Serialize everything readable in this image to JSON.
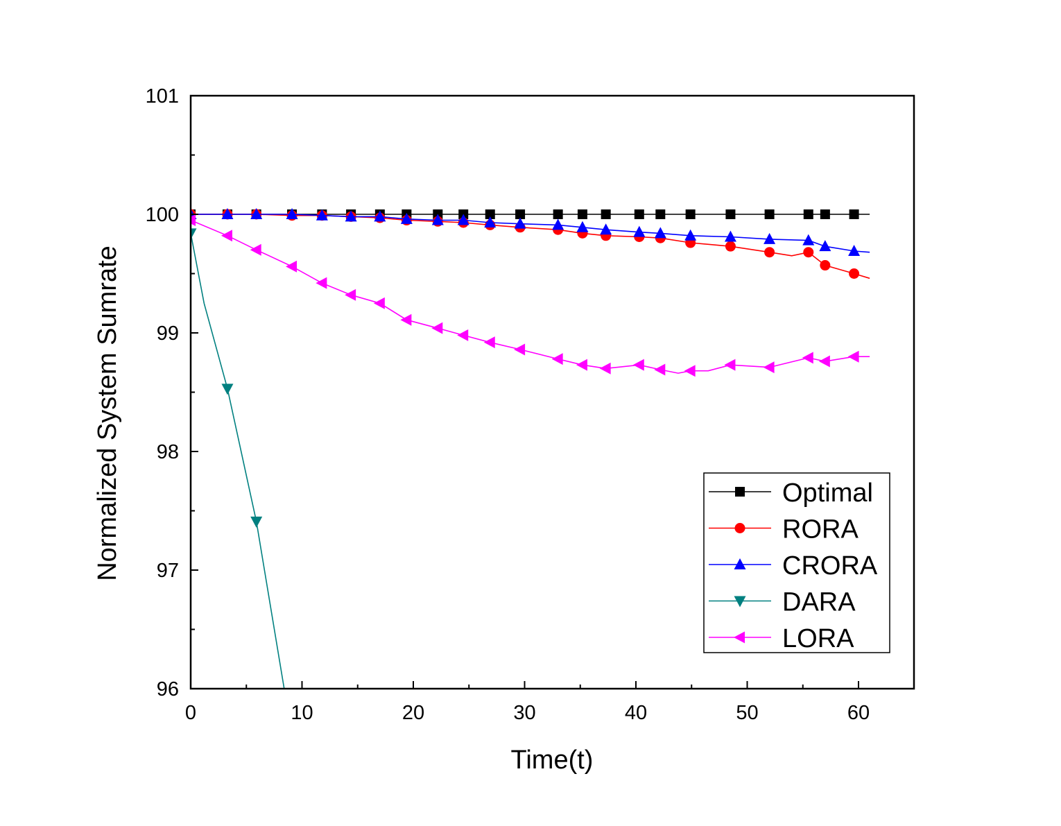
{
  "chart_data": {
    "type": "line",
    "title": "",
    "xlabel": "Time(t)",
    "ylabel": "Normalized System Sumrate",
    "xlim": [
      0,
      65
    ],
    "ylim": [
      96,
      101
    ],
    "xticks": [
      "0",
      "10",
      "20",
      "30",
      "40",
      "50",
      "60"
    ],
    "yticks": [
      "96",
      "97",
      "98",
      "99",
      "100",
      "101"
    ],
    "grid": false,
    "legend_position": "lower-right",
    "series": [
      {
        "name": "Optimal",
        "color": "#000000",
        "marker": "square",
        "x": [
          0,
          3.3,
          5.9,
          9.1,
          11.8,
          14.4,
          17.0,
          19.4,
          22.2,
          24.5,
          26.9,
          29.6,
          33.0,
          35.2,
          37.3,
          40.3,
          42.2,
          44.9,
          48.5,
          52.0,
          55.5,
          57.0,
          59.6
        ],
        "y": [
          100,
          100,
          100,
          100,
          100,
          100,
          100,
          100,
          100,
          100,
          100,
          100,
          100,
          100,
          100,
          100,
          100,
          100,
          100,
          100,
          100,
          100,
          100
        ],
        "line_x": [
          0,
          61
        ],
        "line_y": [
          100,
          100
        ]
      },
      {
        "name": "RORA",
        "color": "#ff0000",
        "marker": "circle",
        "x": [
          0,
          3.3,
          5.9,
          9.1,
          11.8,
          14.4,
          17.0,
          19.4,
          22.2,
          24.5,
          26.9,
          29.6,
          33.0,
          35.2,
          37.3,
          40.3,
          42.2,
          44.9,
          48.5,
          52.0,
          55.5,
          57.0,
          59.6
        ],
        "y": [
          100.0,
          100.0,
          100.0,
          99.99,
          99.99,
          99.98,
          99.97,
          99.95,
          99.94,
          99.93,
          99.91,
          99.89,
          99.87,
          99.84,
          99.82,
          99.81,
          99.8,
          99.76,
          99.73,
          99.68,
          99.68,
          99.57,
          99.5
        ],
        "line_x": [
          0,
          3.3,
          5.9,
          9.1,
          11.8,
          14.4,
          17.0,
          19.4,
          22.2,
          24.5,
          26.9,
          29.6,
          33.0,
          35.2,
          37.3,
          40.3,
          42.2,
          44.9,
          48.5,
          52.0,
          54.0,
          55.5,
          57.0,
          59.6,
          61
        ],
        "line_y": [
          100.0,
          100.0,
          100.0,
          99.99,
          99.99,
          99.98,
          99.97,
          99.95,
          99.94,
          99.93,
          99.91,
          99.89,
          99.87,
          99.84,
          99.82,
          99.81,
          99.8,
          99.76,
          99.73,
          99.68,
          99.65,
          99.68,
          99.57,
          99.5,
          99.46
        ]
      },
      {
        "name": "CRORA",
        "color": "#0000ff",
        "marker": "triangle-up",
        "x": [
          0,
          3.3,
          5.9,
          9.1,
          11.8,
          14.4,
          17.0,
          19.4,
          22.2,
          24.5,
          26.9,
          29.6,
          33.0,
          35.2,
          37.3,
          40.3,
          42.2,
          44.9,
          48.5,
          52.0,
          55.5,
          57.0,
          59.6
        ],
        "y": [
          100.0,
          100.0,
          100.0,
          100.0,
          99.99,
          99.98,
          99.98,
          99.96,
          99.95,
          99.95,
          99.93,
          99.92,
          99.91,
          99.89,
          99.87,
          99.85,
          99.84,
          99.82,
          99.81,
          99.79,
          99.78,
          99.73,
          99.69
        ],
        "line_x": [
          0,
          3.3,
          5.9,
          9.1,
          11.8,
          14.4,
          17.0,
          19.4,
          22.2,
          24.5,
          26.9,
          29.6,
          33.0,
          35.2,
          37.3,
          40.3,
          42.2,
          44.9,
          48.5,
          52.0,
          55.5,
          57.0,
          59.6,
          61
        ],
        "line_y": [
          100.0,
          100.0,
          100.0,
          100.0,
          99.99,
          99.98,
          99.98,
          99.96,
          99.95,
          99.95,
          99.93,
          99.92,
          99.91,
          99.89,
          99.87,
          99.85,
          99.84,
          99.82,
          99.81,
          99.79,
          99.78,
          99.73,
          99.69,
          99.68
        ]
      },
      {
        "name": "DARA",
        "color": "#008080",
        "marker": "triangle-down",
        "x": [
          0,
          3.3,
          5.9
        ],
        "y": [
          99.84,
          98.53,
          97.41
        ],
        "line_x": [
          0,
          1.2,
          3.3,
          5.9,
          8.4
        ],
        "line_y": [
          99.84,
          99.25,
          98.53,
          97.41,
          96.0
        ]
      },
      {
        "name": "LORA",
        "color": "#ff00ff",
        "marker": "triangle-left",
        "x": [
          0,
          3.3,
          5.9,
          9.1,
          11.8,
          14.4,
          17.0,
          19.4,
          22.2,
          24.5,
          26.9,
          29.6,
          33.0,
          35.2,
          37.3,
          40.3,
          42.2,
          44.9,
          48.5,
          52.0,
          55.5,
          57.0,
          59.6
        ],
        "y": [
          99.95,
          99.82,
          99.7,
          99.56,
          99.42,
          99.32,
          99.25,
          99.11,
          99.04,
          98.98,
          98.92,
          98.86,
          98.78,
          98.73,
          98.7,
          98.73,
          98.69,
          98.68,
          98.73,
          98.71,
          98.79,
          98.76,
          98.8
        ],
        "line_x": [
          0,
          3.3,
          5.9,
          9.1,
          11.8,
          14.4,
          17.0,
          19.4,
          22.2,
          24.5,
          26.9,
          29.6,
          33.0,
          35.2,
          37.3,
          40.3,
          42.2,
          43.8,
          44.9,
          46.5,
          48.5,
          52.0,
          55.5,
          57.0,
          59.6,
          61
        ],
        "line_y": [
          99.95,
          99.82,
          99.7,
          99.56,
          99.42,
          99.32,
          99.25,
          99.11,
          99.04,
          98.98,
          98.92,
          98.86,
          98.78,
          98.73,
          98.7,
          98.73,
          98.69,
          98.66,
          98.68,
          98.68,
          98.73,
          98.71,
          98.79,
          98.76,
          98.8,
          98.8
        ]
      }
    ]
  }
}
